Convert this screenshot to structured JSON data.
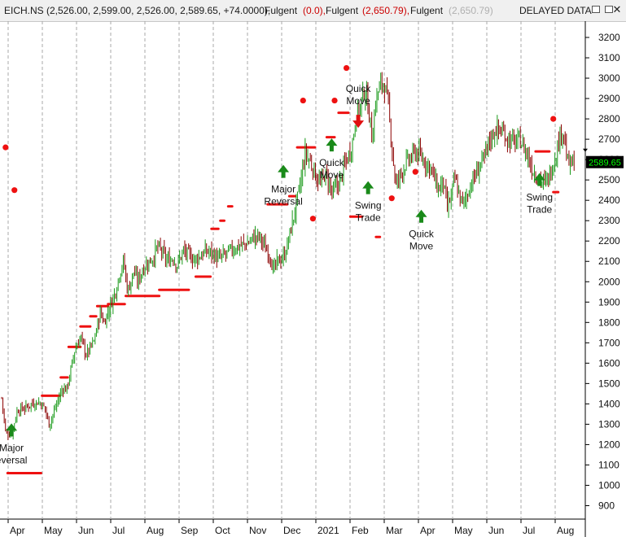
{
  "header": {
    "symbol_info": "EICH.NS (2,526.00, 2,599.00, 2,526.00, 2,589.65, +74.0000),",
    "ind1_name": "Fulgent",
    "ind1_val": "(0.0),",
    "ind2_name": "Fulgent",
    "ind2_val": "(2,650.79),",
    "ind3_name": "Fulgent",
    "ind3_val": "(2,650.79)",
    "delayed": "DELAYED DATA"
  },
  "colors": {
    "up": "#1a9a1a",
    "down": "#8b0000",
    "stop": "#ee1111",
    "signal_arrow": "#1a8a1a",
    "last_price_bg": "#000000",
    "last_price_fg": "#00ff00"
  },
  "chart_data": {
    "type": "candlestick",
    "symbol": "EICH.NS",
    "last_price": "2589.65",
    "ylim": [
      850,
      3280
    ],
    "y_ticks": [
      900,
      1000,
      1100,
      1200,
      1300,
      1400,
      1500,
      1600,
      1700,
      1800,
      1900,
      2000,
      2100,
      2200,
      2300,
      2400,
      2500,
      2600,
      2700,
      2800,
      2900,
      3000,
      3100,
      3200
    ],
    "x_labels": [
      "Apr",
      "May",
      "Jun",
      "Jul",
      "Aug",
      "Sep",
      "Oct",
      "Nov",
      "Dec",
      "2021",
      "Feb",
      "Mar",
      "Apr",
      "May",
      "Jun",
      "Jul",
      "Aug"
    ],
    "grid": "vertical dashed at month boundaries",
    "price_path": [
      [
        0,
        1430
      ],
      [
        4,
        1260
      ],
      [
        10,
        1250
      ],
      [
        16,
        1370
      ],
      [
        24,
        1380
      ],
      [
        30,
        1400
      ],
      [
        38,
        1410
      ],
      [
        44,
        1380
      ],
      [
        48,
        1300
      ],
      [
        50,
        1320
      ],
      [
        56,
        1400
      ],
      [
        62,
        1480
      ],
      [
        66,
        1470
      ],
      [
        70,
        1560
      ],
      [
        74,
        1660
      ],
      [
        80,
        1730
      ],
      [
        86,
        1640
      ],
      [
        94,
        1710
      ],
      [
        100,
        1850
      ],
      [
        104,
        1800
      ],
      [
        110,
        1880
      ],
      [
        116,
        1960
      ],
      [
        120,
        2050
      ],
      [
        124,
        2100
      ],
      [
        128,
        1950
      ],
      [
        134,
        2050
      ],
      [
        138,
        2000
      ],
      [
        144,
        2070
      ],
      [
        150,
        2100
      ],
      [
        154,
        2120
      ],
      [
        158,
        2170
      ],
      [
        162,
        2150
      ],
      [
        168,
        2100
      ],
      [
        174,
        2120
      ],
      [
        178,
        2080
      ],
      [
        184,
        2150
      ],
      [
        190,
        2130
      ],
      [
        196,
        2110
      ],
      [
        202,
        2130
      ],
      [
        208,
        2150
      ],
      [
        214,
        2140
      ],
      [
        220,
        2110
      ],
      [
        226,
        2130
      ],
      [
        232,
        2150
      ],
      [
        238,
        2170
      ],
      [
        244,
        2180
      ],
      [
        250,
        2190
      ],
      [
        256,
        2220
      ],
      [
        262,
        2220
      ],
      [
        268,
        2160
      ],
      [
        272,
        2140
      ],
      [
        276,
        2050
      ],
      [
        280,
        2100
      ],
      [
        286,
        2120
      ],
      [
        290,
        2180
      ],
      [
        296,
        2310
      ],
      [
        300,
        2400
      ],
      [
        304,
        2500
      ],
      [
        308,
        2630
      ],
      [
        312,
        2600
      ],
      [
        316,
        2560
      ],
      [
        320,
        2510
      ],
      [
        324,
        2480
      ],
      [
        328,
        2530
      ],
      [
        332,
        2490
      ],
      [
        336,
        2430
      ],
      [
        340,
        2470
      ],
      [
        344,
        2500
      ],
      [
        348,
        2570
      ],
      [
        352,
        2620
      ],
      [
        356,
        2680
      ],
      [
        360,
        2820
      ],
      [
        364,
        2860
      ],
      [
        368,
        2940
      ],
      [
        372,
        2870
      ],
      [
        376,
        2700
      ],
      [
        380,
        2900
      ],
      [
        384,
        2960
      ],
      [
        388,
        2980
      ],
      [
        392,
        2880
      ],
      [
        396,
        2680
      ],
      [
        400,
        2470
      ],
      [
        404,
        2520
      ],
      [
        410,
        2580
      ],
      [
        416,
        2610
      ],
      [
        420,
        2640
      ],
      [
        424,
        2620
      ],
      [
        430,
        2590
      ],
      [
        436,
        2560
      ],
      [
        440,
        2490
      ],
      [
        444,
        2450
      ],
      [
        448,
        2500
      ],
      [
        452,
        2360
      ],
      [
        456,
        2410
      ],
      [
        460,
        2510
      ],
      [
        464,
        2430
      ],
      [
        468,
        2380
      ],
      [
        472,
        2420
      ],
      [
        476,
        2480
      ],
      [
        480,
        2510
      ],
      [
        486,
        2580
      ],
      [
        490,
        2600
      ],
      [
        494,
        2680
      ],
      [
        498,
        2720
      ],
      [
        502,
        2750
      ],
      [
        506,
        2740
      ],
      [
        510,
        2730
      ],
      [
        514,
        2700
      ],
      [
        518,
        2690
      ],
      [
        522,
        2680
      ],
      [
        526,
        2700
      ],
      [
        530,
        2660
      ],
      [
        534,
        2620
      ],
      [
        538,
        2560
      ],
      [
        542,
        2530
      ],
      [
        546,
        2510
      ],
      [
        550,
        2480
      ],
      [
        554,
        2500
      ],
      [
        558,
        2550
      ],
      [
        562,
        2620
      ],
      [
        566,
        2700
      ],
      [
        570,
        2760
      ],
      [
        574,
        2590
      ],
      [
        578,
        2570
      ],
      [
        582,
        2600
      ]
    ],
    "stop_lines": [
      {
        "x": [
          6,
          40
        ],
        "y": 1060
      },
      {
        "x": [
          41,
          59
        ],
        "y": 1440
      },
      {
        "x": [
          60,
          67
        ],
        "y": 1530
      },
      {
        "x": [
          68,
          80
        ],
        "y": 1680
      },
      {
        "x": [
          80,
          90
        ],
        "y": 1780
      },
      {
        "x": [
          90,
          96
        ],
        "y": 1830
      },
      {
        "x": [
          97,
          108
        ],
        "y": 1880
      },
      {
        "x": [
          108,
          125
        ],
        "y": 1890
      },
      {
        "x": [
          126,
          160
        ],
        "y": 1930
      },
      {
        "x": [
          160,
          190
        ],
        "y": 1960
      },
      {
        "x": [
          197,
          212
        ],
        "y": 2025
      },
      {
        "x": [
          213,
          220
        ],
        "y": 2260
      },
      {
        "x": [
          222,
          226
        ],
        "y": 2300
      },
      {
        "x": [
          230,
          234
        ],
        "y": 2370
      },
      {
        "x": [
          270,
          290
        ],
        "y": 2380
      },
      {
        "x": [
          292,
          298
        ],
        "y": 2420
      },
      {
        "x": [
          300,
          318
        ],
        "y": 2660
      },
      {
        "x": [
          330,
          338
        ],
        "y": 2710
      },
      {
        "x": [
          342,
          352
        ],
        "y": 2830
      },
      {
        "x": [
          354,
          366
        ],
        "y": 2320
      },
      {
        "x": [
          380,
          384
        ],
        "y": 2220
      },
      {
        "x": [
          542,
          556
        ],
        "y": 2640
      },
      {
        "x": [
          560,
          565
        ],
        "y": 2440
      }
    ],
    "stop_dots": [
      {
        "x": 4,
        "y": 2660
      },
      {
        "x": 13,
        "y": 2450
      },
      {
        "x": 306,
        "y": 2890
      },
      {
        "x": 316,
        "y": 2310
      },
      {
        "x": 338,
        "y": 2890
      },
      {
        "x": 350,
        "y": 3050
      },
      {
        "x": 396,
        "y": 2410
      },
      {
        "x": 420,
        "y": 2540
      },
      {
        "x": 560,
        "y": 2800
      }
    ],
    "signals": [
      {
        "x": 10,
        "y": 1240,
        "dir": "up",
        "label": [
          "Major",
          "eversal"
        ]
      },
      {
        "x": 286,
        "y": 2510,
        "dir": "up",
        "label": [
          "Major",
          "Reversal"
        ]
      },
      {
        "x": 335,
        "y": 2640,
        "dir": "up",
        "label": [
          "Quick",
          "Move"
        ]
      },
      {
        "x": 362,
        "y": 2820,
        "dir": "down",
        "label": [
          "Quick",
          "Move"
        ]
      },
      {
        "x": 372,
        "y": 2430,
        "dir": "up",
        "label": [
          "Swing",
          "Trade"
        ]
      },
      {
        "x": 426,
        "y": 2290,
        "dir": "up",
        "label": [
          "Quick",
          "Move"
        ]
      },
      {
        "x": 546,
        "y": 2470,
        "dir": "up",
        "label": [
          "Swing",
          "Trade"
        ]
      }
    ]
  }
}
